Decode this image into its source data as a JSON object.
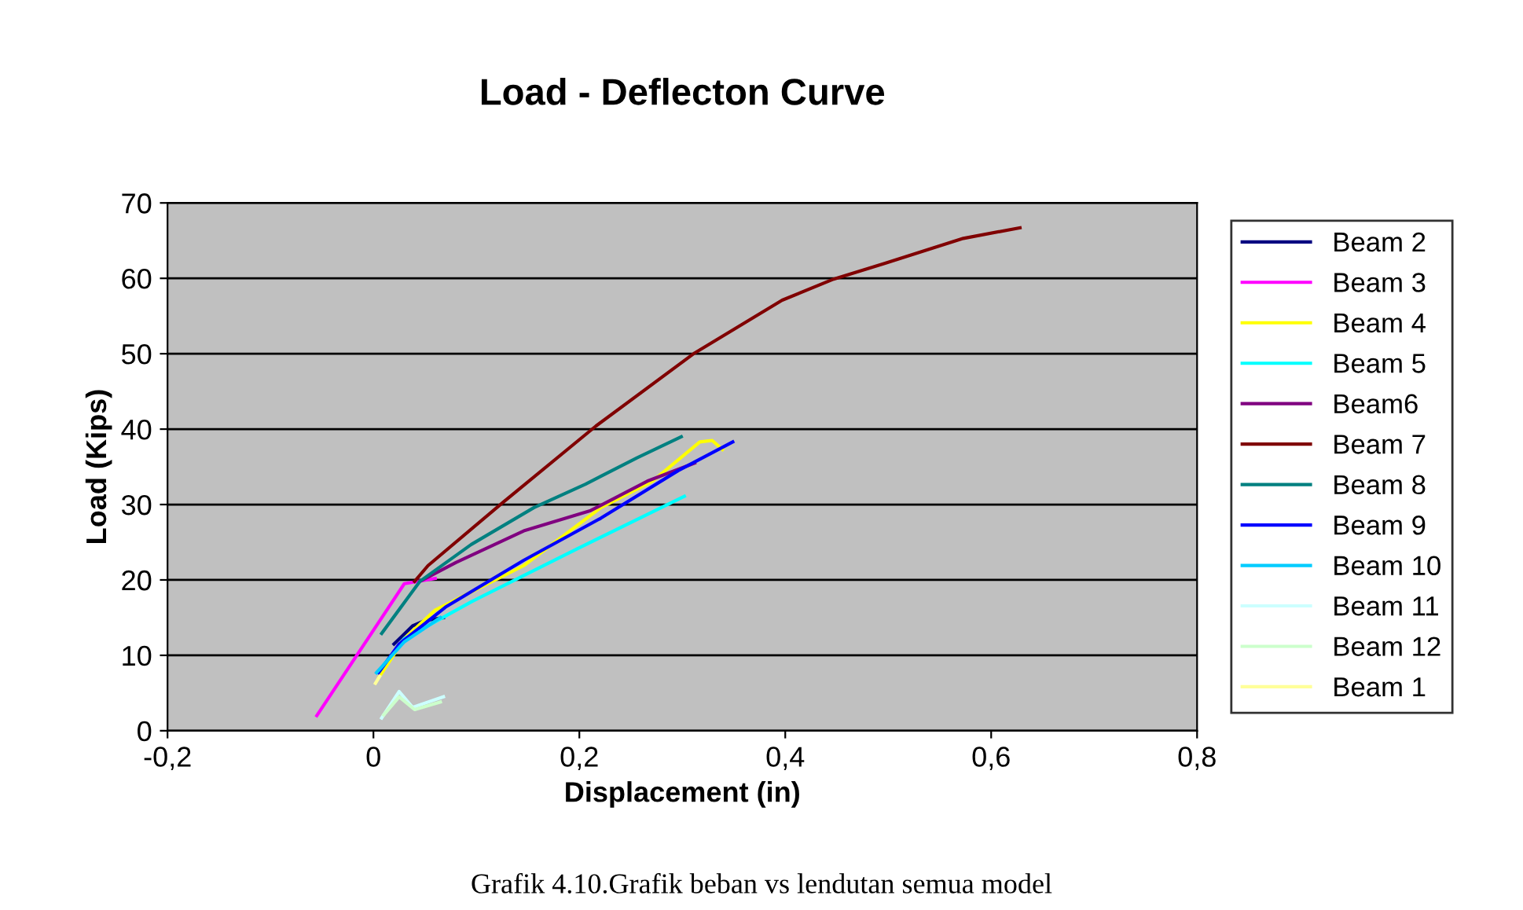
{
  "chart_data": {
    "type": "line",
    "title": "Load - Deflecton Curve",
    "xlabel": "Displacement (in)",
    "ylabel": "Load (Kips)",
    "xlim": [
      -0.2,
      0.8
    ],
    "ylim": [
      0,
      70
    ],
    "xticks": [
      {
        "value": -0.2,
        "label": "-0,2"
      },
      0,
      {
        "value": 0.2,
        "label": "0,2"
      },
      {
        "value": 0.4,
        "label": "0,4"
      },
      {
        "value": 0.6,
        "label": "0,6"
      },
      {
        "value": 0.8,
        "label": "0,8"
      }
    ],
    "yticks": [
      0,
      10,
      20,
      30,
      40,
      50,
      60,
      70
    ],
    "grid": "y",
    "legend": "right",
    "marker": "none",
    "line_style": "solid",
    "annotations": [
      "Grafik 4.10.Grafik beban vs lendutan semua model"
    ],
    "series": [
      {
        "name": "Beam 2",
        "color": "#000080",
        "x": [
          0.02,
          0.038,
          0.05,
          0.068
        ],
        "values": [
          11.5,
          13.9,
          14.6,
          15
        ]
      },
      {
        "name": "Beam 3",
        "color": "#ff00ff",
        "x": [
          -0.055,
          0.03,
          0.06
        ],
        "values": [
          2,
          19.5,
          20.2
        ]
      },
      {
        "name": "Beam 4",
        "color": "#ffff00",
        "x": [
          0.005,
          0.03,
          0.06,
          0.146,
          0.221,
          0.271,
          0.317,
          0.329,
          0.339
        ],
        "values": [
          7,
          12.2,
          16,
          21.9,
          29.6,
          33.1,
          38.3,
          38.5,
          37.3
        ]
      },
      {
        "name": "Beam 5",
        "color": "#00ffff",
        "x": [
          0.01,
          0.03,
          0.095,
          0.196,
          0.302
        ],
        "values": [
          8.7,
          12.2,
          17.1,
          24,
          31.1
        ]
      },
      {
        "name": "Beam6",
        "color": "#800080",
        "x": [
          0.045,
          0.08,
          0.146,
          0.211,
          0.266,
          0.312
        ],
        "values": [
          19.8,
          22.3,
          26.5,
          29.2,
          33.1,
          35.5
        ]
      },
      {
        "name": "Beam 7",
        "color": "#800000",
        "x": [
          0.04,
          0.053,
          0.126,
          0.216,
          0.312,
          0.397,
          0.447,
          0.497,
          0.573,
          0.628
        ],
        "values": [
          19.8,
          21.9,
          30.3,
          40.4,
          50.1,
          57.1,
          59.9,
          62,
          65.3,
          66.7
        ]
      },
      {
        "name": "Beam 8",
        "color": "#008080",
        "x": [
          0.008,
          0.045,
          0.095,
          0.156,
          0.206,
          0.256,
          0.299
        ],
        "values": [
          12.9,
          19.8,
          24.7,
          29.6,
          32.7,
          36.2,
          39
        ]
      },
      {
        "name": "Beam 9",
        "color": "#0000ff",
        "x": [
          0.005,
          0.025,
          0.07,
          0.146,
          0.221,
          0.296,
          0.349
        ],
        "values": [
          7.7,
          11.5,
          16.4,
          22.6,
          28.2,
          34.5,
          38.3
        ]
      },
      {
        "name": "Beam 10",
        "color": "#00ccff",
        "x": [
          0.003,
          0.03,
          0.065
        ],
        "values": [
          7.7,
          11.8,
          15
        ]
      },
      {
        "name": "Beam 11",
        "color": "#ccffff",
        "x": [
          0.008,
          0.025,
          0.038,
          0.068
        ],
        "values": [
          1.7,
          5.2,
          3.1,
          4.5
        ]
      },
      {
        "name": "Beam 12",
        "color": "#ccffcc",
        "x": [
          0.01,
          0.025,
          0.04,
          0.065
        ],
        "values": [
          2.1,
          4.5,
          2.8,
          3.8
        ]
      },
      {
        "name": "Beam 1",
        "color": "#ffff99",
        "x": [
          0.002,
          0.006
        ],
        "values": [
          6.3,
          7.2
        ]
      }
    ]
  }
}
